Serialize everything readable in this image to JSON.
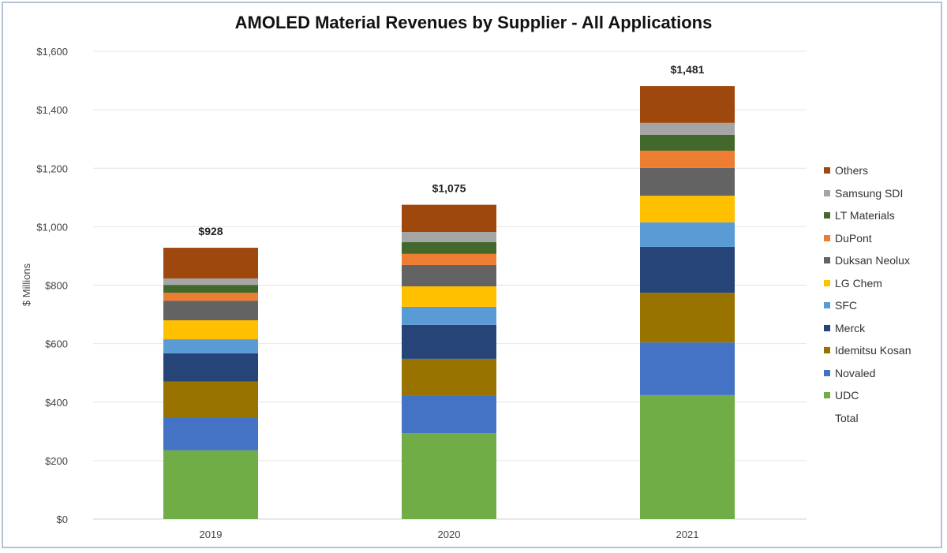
{
  "chart_data": {
    "type": "bar",
    "stacked": true,
    "title": "AMOLED Material Revenues by Supplier - All Applications",
    "xlabel": "",
    "ylabel": "$ Millions",
    "ylim": [
      0,
      1600
    ],
    "yticks": [
      "$0",
      "$200",
      "$400",
      "$600",
      "$800",
      "$1,000",
      "$1,200",
      "$1,400",
      "$1,600"
    ],
    "ytick_values": [
      0,
      200,
      400,
      600,
      800,
      1000,
      1200,
      1400,
      1600
    ],
    "grid": true,
    "legend_position": "right",
    "categories": [
      "2019",
      "2020",
      "2021"
    ],
    "series": [
      {
        "name": "UDC",
        "color": "#70ad47",
        "values": [
          235,
          294,
          424
        ]
      },
      {
        "name": "Novaled",
        "color": "#4472c4",
        "values": [
          113,
          127,
          180
        ]
      },
      {
        "name": "Idemitsu Kosan",
        "color": "#997300",
        "values": [
          122,
          127,
          170
        ]
      },
      {
        "name": "Merck",
        "color": "#264478",
        "values": [
          97,
          116,
          157
        ]
      },
      {
        "name": "SFC",
        "color": "#5b9bd5",
        "values": [
          48,
          62,
          84
        ]
      },
      {
        "name": "LG Chem",
        "color": "#ffc000",
        "values": [
          65,
          70,
          91
        ]
      },
      {
        "name": "Duksan Neolux",
        "color": "#636363",
        "values": [
          67,
          73,
          95
        ]
      },
      {
        "name": "DuPont",
        "color": "#ed7d31",
        "values": [
          27,
          38,
          59
        ]
      },
      {
        "name": "LT Materials",
        "color": "#43682b",
        "values": [
          27,
          40,
          54
        ]
      },
      {
        "name": "Samsung SDI",
        "color": "#a5a5a5",
        "values": [
          22,
          35,
          41
        ]
      },
      {
        "name": "Others",
        "color": "#9e480e",
        "values": [
          105,
          93,
          126
        ]
      }
    ],
    "totals_label": "Total",
    "totals": [
      "$928",
      "$1,075",
      "$1,481"
    ]
  }
}
